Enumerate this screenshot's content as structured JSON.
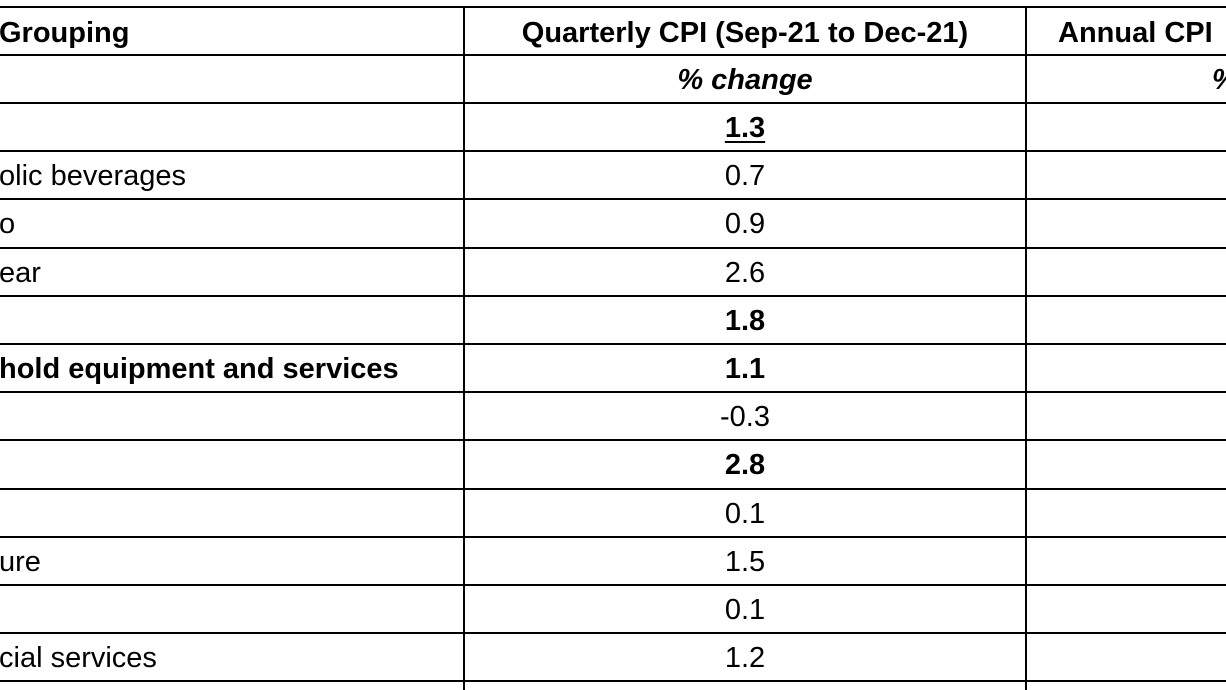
{
  "table": {
    "header": [
      "Grouping",
      "Quarterly CPI (Sep-21 to Dec-21)",
      "Annual CPI"
    ],
    "unit_row": [
      "% change",
      "%"
    ],
    "rows": [
      {
        "label": "",
        "value": 1.3,
        "bold": true,
        "underline": true
      },
      {
        "label": "olic beverages",
        "value": 0.7,
        "bold": false,
        "underline": false
      },
      {
        "label": "o",
        "value": 0.9,
        "bold": false,
        "underline": false
      },
      {
        "label": "ear",
        "value": 2.6,
        "bold": false,
        "underline": false
      },
      {
        "label": "",
        "value": 1.8,
        "bold": true,
        "underline": false
      },
      {
        "label": "hold equipment and services",
        "value": 1.1,
        "bold": true,
        "underline": false
      },
      {
        "label": "",
        "value": -0.3,
        "bold": false,
        "underline": false
      },
      {
        "label": "",
        "value": 2.8,
        "bold": true,
        "underline": false
      },
      {
        "label": "",
        "value": 0.1,
        "bold": false,
        "underline": false
      },
      {
        "label": "ure",
        "value": 1.5,
        "bold": false,
        "underline": false
      },
      {
        "label": "",
        "value": 0.1,
        "bold": false,
        "underline": false
      },
      {
        "label": "cial services",
        "value": 1.2,
        "bold": false,
        "underline": false
      }
    ]
  }
}
